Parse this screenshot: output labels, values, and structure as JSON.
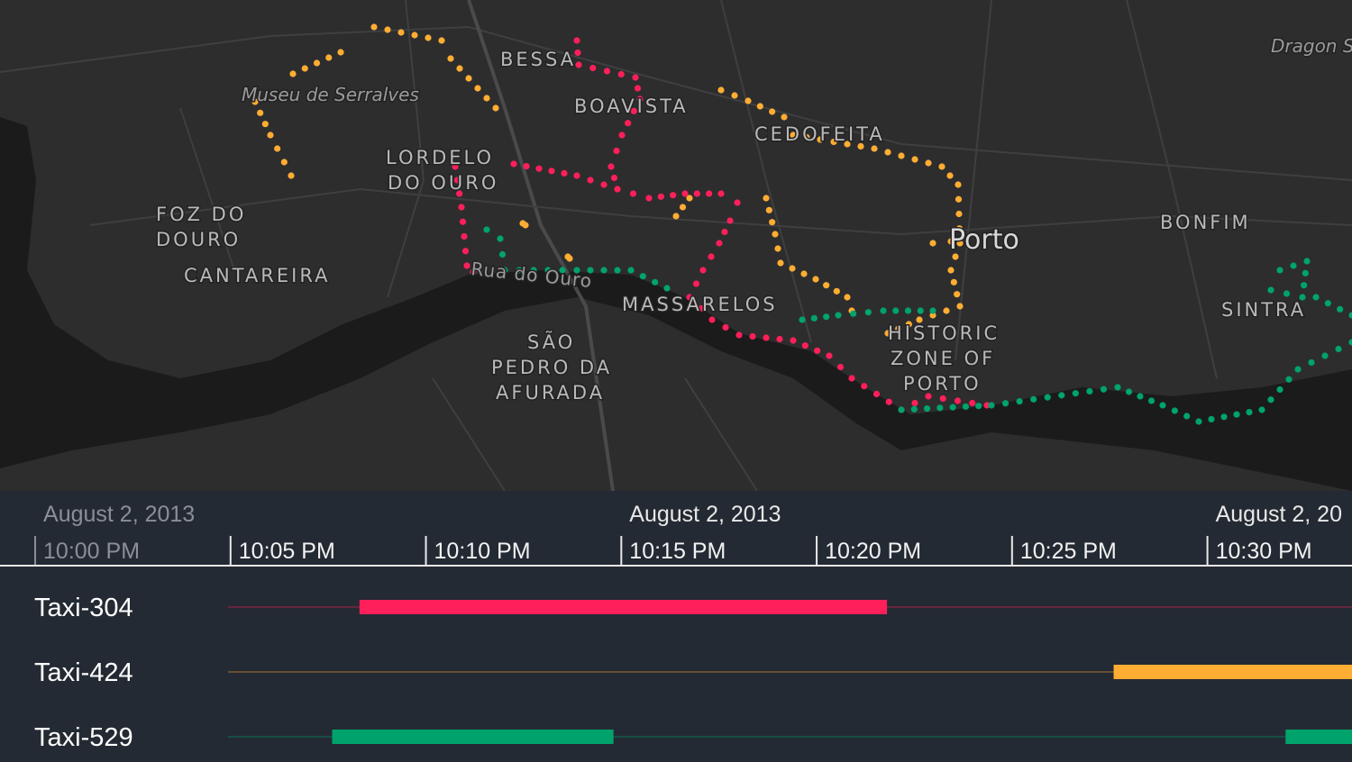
{
  "map": {
    "labels": [
      {
        "lines": [
          "BESSA"
        ]
      },
      {
        "lines": [
          "BOAVISTA"
        ]
      },
      {
        "lines": [
          "CEDOFEITA"
        ]
      },
      {
        "lines": [
          "LORDELO",
          "DO OURO"
        ]
      },
      {
        "lines": [
          "FOZ DO",
          "DOURO"
        ]
      },
      {
        "lines": [
          "CANTAREIRA"
        ]
      },
      {
        "lines": [
          "MASSARELOS"
        ]
      },
      {
        "lines": [
          "SÃO",
          "PEDRO DA",
          "AFURADA"
        ]
      },
      {
        "lines": [
          "HISTORIC",
          "ZONE OF",
          "PORTO"
        ]
      },
      {
        "lines": [
          "BONFIM"
        ]
      },
      {
        "lines": [
          "SINTRA"
        ]
      }
    ],
    "pois": [
      "Museu de Serralves",
      "Dragon S"
    ],
    "street": "Rua do Ouro",
    "city": "Porto"
  },
  "timeline": {
    "xlim": [
      -0.9,
      33.7
    ],
    "dates": [
      {
        "value": 0,
        "label": "August 2, 2013"
      },
      {
        "value": 15,
        "label": "August 2, 2013"
      },
      {
        "value": 30,
        "label": "August 2, 20"
      }
    ],
    "ticks": [
      {
        "value": 0,
        "label": "10:00 PM"
      },
      {
        "value": 5,
        "label": "10:05 PM"
      },
      {
        "value": 10,
        "label": "10:10 PM"
      },
      {
        "value": 15,
        "label": "10:15 PM"
      },
      {
        "value": 20,
        "label": "10:20 PM"
      },
      {
        "value": 25,
        "label": "10:25 PM"
      },
      {
        "value": 30,
        "label": "10:30 PM"
      }
    ],
    "rows": [
      {
        "name": "Taxi-304",
        "color": "#ff1f5a",
        "trips": [
          [
            8.3,
            21.8
          ]
        ]
      },
      {
        "name": "Taxi-424",
        "color": "#ffad33",
        "trips": [
          [
            27.6,
            33.7
          ]
        ]
      },
      {
        "name": "Taxi-529",
        "color": "#00a36c",
        "trips": [
          [
            7.6,
            14.8
          ],
          [
            32.0,
            33.7
          ]
        ]
      }
    ]
  }
}
